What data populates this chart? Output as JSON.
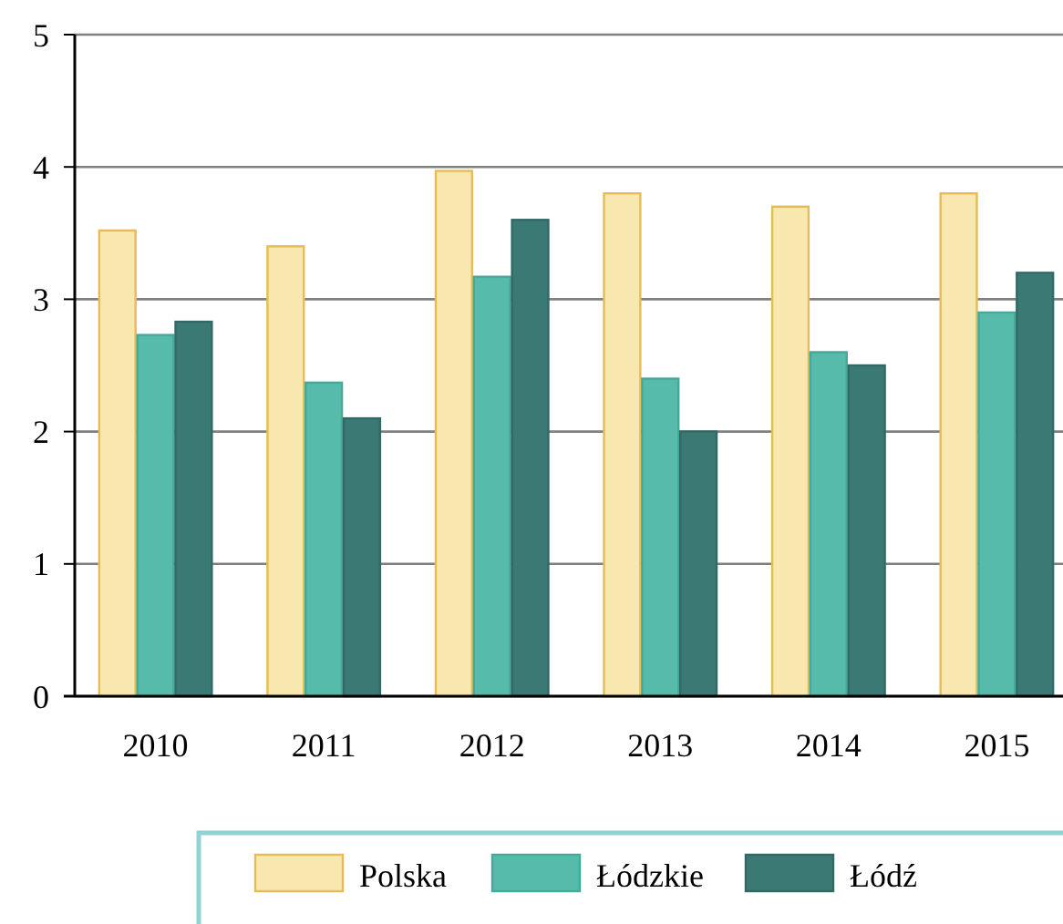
{
  "chart_data": {
    "type": "bar",
    "categories": [
      "2010",
      "2011",
      "2012",
      "2013",
      "2014",
      "2015"
    ],
    "series": [
      {
        "name": "Polska",
        "color": "#f8e8b0",
        "values": [
          3.52,
          3.4,
          3.97,
          3.8,
          3.7,
          3.8
        ]
      },
      {
        "name": "Łódzkie",
        "color": "#56bbaa",
        "values": [
          2.73,
          2.37,
          3.17,
          2.4,
          2.6,
          2.9
        ]
      },
      {
        "name": "Łódź",
        "color": "#3b7975",
        "values": [
          2.83,
          2.1,
          3.6,
          2.0,
          2.5,
          3.2
        ]
      }
    ],
    "ylim": [
      0,
      5
    ],
    "yticks": [
      0,
      1,
      2,
      3,
      4,
      5
    ],
    "grid": "y",
    "legend": "bottom"
  }
}
